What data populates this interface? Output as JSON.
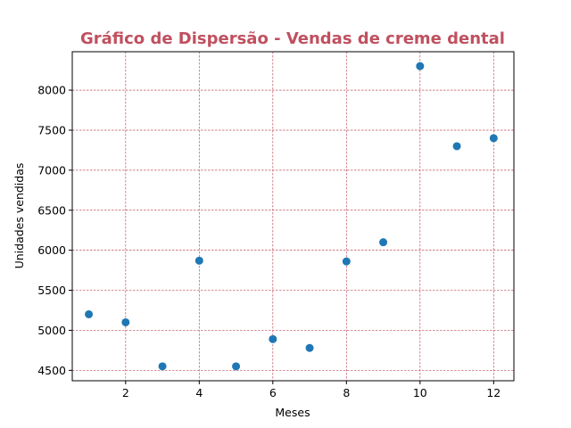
{
  "chart_data": {
    "type": "scatter",
    "title": "Gráfico de Dispersão - Vendas de creme dental",
    "xlabel": "Meses",
    "ylabel": "Unidades vendidas",
    "x": [
      1,
      2,
      3,
      4,
      5,
      6,
      7,
      8,
      9,
      10,
      11,
      12
    ],
    "y": [
      5200,
      5100,
      4550,
      5870,
      4550,
      4890,
      4780,
      5860,
      6100,
      8300,
      7300,
      7400
    ],
    "xlim": [
      0.55,
      12.55
    ],
    "ylim": [
      4370,
      8480
    ],
    "xticks": [
      2,
      4,
      6,
      8,
      10,
      12
    ],
    "yticks": [
      4500,
      5000,
      5500,
      6000,
      6500,
      7000,
      7500,
      8000
    ],
    "grid": true,
    "colors": {
      "marker": "#1f77b4",
      "grid": "#c0505f",
      "title": "#c0505f"
    }
  }
}
